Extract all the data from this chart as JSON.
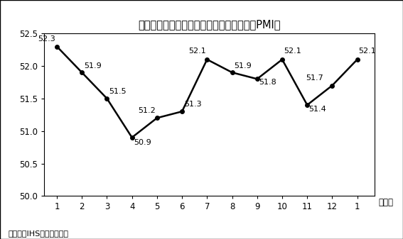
{
  "title": "図　フィリピンの製造業購買担当者指数（PMI）",
  "x_values": [
    1,
    2,
    3,
    4,
    5,
    6,
    7,
    8,
    9,
    10,
    11,
    12,
    13
  ],
  "y_values": [
    52.3,
    51.9,
    51.5,
    50.9,
    51.2,
    51.3,
    52.1,
    51.9,
    51.8,
    52.1,
    51.4,
    51.7,
    52.1
  ],
  "x_tick_labels": [
    "1",
    "2",
    "3",
    "4",
    "5",
    "6",
    "7",
    "8",
    "9",
    "10",
    "11",
    "12",
    "1"
  ],
  "ylim": [
    50.0,
    52.5
  ],
  "yticks": [
    50.0,
    50.5,
    51.0,
    51.5,
    52.0,
    52.5
  ],
  "line_color": "#000000",
  "marker": "o",
  "marker_size": 4,
  "line_width": 1.8,
  "background_color": "#ffffff",
  "plot_bg_color": "#ffffff",
  "title_fontsize": 10.5,
  "label_fontsize": 8.5,
  "annotation_fontsize": 8,
  "source_text": "（出所）IHSマーケイット",
  "month_label": "（月）"
}
